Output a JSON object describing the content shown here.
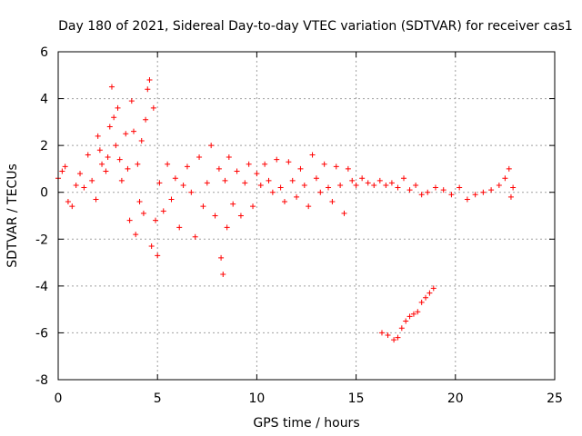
{
  "chart_data": {
    "type": "scatter",
    "title": "Day 180 of 2021, Sidereal Day-to-day VTEC variation (SDTVAR) for receiver cas1",
    "xlabel": "GPS time / hours",
    "ylabel": "SDTVAR / TECUs",
    "xlim": [
      0,
      25
    ],
    "ylim": [
      -8,
      6
    ],
    "x_ticks": [
      0,
      5,
      10,
      15,
      20,
      25
    ],
    "x_tick_labels": [
      "0",
      "5",
      "10",
      "15",
      "20",
      "25"
    ],
    "y_ticks": [
      -8,
      -6,
      -4,
      -2,
      0,
      2,
      4,
      6
    ],
    "y_tick_labels": [
      "-8",
      "-6",
      "-4",
      "-2",
      "0",
      "2",
      "4",
      "6"
    ],
    "grid": true,
    "marker": "+",
    "series": [
      {
        "name": "cas1 SDTVAR",
        "color": "#ff0000",
        "points": [
          [
            0.0,
            0.6
          ],
          [
            0.2,
            0.9
          ],
          [
            0.35,
            1.1
          ],
          [
            0.5,
            -0.4
          ],
          [
            0.7,
            -0.6
          ],
          [
            0.9,
            0.3
          ],
          [
            1.1,
            0.8
          ],
          [
            1.3,
            0.2
          ],
          [
            1.5,
            1.6
          ],
          [
            1.7,
            0.5
          ],
          [
            1.9,
            -0.3
          ],
          [
            2.0,
            2.4
          ],
          [
            2.1,
            1.8
          ],
          [
            2.2,
            1.2
          ],
          [
            2.4,
            0.9
          ],
          [
            2.5,
            1.5
          ],
          [
            2.6,
            2.8
          ],
          [
            2.7,
            4.5
          ],
          [
            2.8,
            3.2
          ],
          [
            2.9,
            2.0
          ],
          [
            3.0,
            3.6
          ],
          [
            3.1,
            1.4
          ],
          [
            3.2,
            0.5
          ],
          [
            3.4,
            2.5
          ],
          [
            3.5,
            1.0
          ],
          [
            3.6,
            -1.2
          ],
          [
            3.7,
            3.9
          ],
          [
            3.8,
            2.6
          ],
          [
            3.9,
            -1.8
          ],
          [
            4.0,
            1.2
          ],
          [
            4.1,
            -0.4
          ],
          [
            4.2,
            2.2
          ],
          [
            4.3,
            -0.9
          ],
          [
            4.4,
            3.1
          ],
          [
            4.5,
            4.4
          ],
          [
            4.6,
            4.8
          ],
          [
            4.7,
            -2.3
          ],
          [
            4.8,
            3.6
          ],
          [
            4.9,
            -1.2
          ],
          [
            5.0,
            -2.7
          ],
          [
            5.1,
            0.4
          ],
          [
            5.3,
            -0.8
          ],
          [
            5.5,
            1.2
          ],
          [
            5.7,
            -0.3
          ],
          [
            5.9,
            0.6
          ],
          [
            6.1,
            -1.5
          ],
          [
            6.3,
            0.3
          ],
          [
            6.5,
            1.1
          ],
          [
            6.7,
            0.0
          ],
          [
            6.9,
            -1.9
          ],
          [
            7.1,
            1.5
          ],
          [
            7.3,
            -0.6
          ],
          [
            7.5,
            0.4
          ],
          [
            7.7,
            2.0
          ],
          [
            7.9,
            -1.0
          ],
          [
            8.1,
            1.0
          ],
          [
            8.2,
            -2.8
          ],
          [
            8.3,
            -3.5
          ],
          [
            8.4,
            0.5
          ],
          [
            8.5,
            -1.5
          ],
          [
            8.6,
            1.5
          ],
          [
            8.8,
            -0.5
          ],
          [
            9.0,
            0.9
          ],
          [
            9.2,
            -1.0
          ],
          [
            9.4,
            0.4
          ],
          [
            9.6,
            1.2
          ],
          [
            9.8,
            -0.6
          ],
          [
            10.0,
            0.8
          ],
          [
            10.2,
            0.3
          ],
          [
            10.4,
            1.2
          ],
          [
            10.6,
            0.5
          ],
          [
            10.8,
            0.0
          ],
          [
            11.0,
            1.4
          ],
          [
            11.2,
            0.2
          ],
          [
            11.4,
            -0.4
          ],
          [
            11.6,
            1.3
          ],
          [
            11.8,
            0.5
          ],
          [
            12.0,
            -0.2
          ],
          [
            12.2,
            1.0
          ],
          [
            12.4,
            0.3
          ],
          [
            12.6,
            -0.6
          ],
          [
            12.8,
            1.6
          ],
          [
            13.0,
            0.6
          ],
          [
            13.2,
            0.0
          ],
          [
            13.4,
            1.2
          ],
          [
            13.6,
            0.2
          ],
          [
            13.8,
            -0.4
          ],
          [
            14.0,
            1.1
          ],
          [
            14.2,
            0.3
          ],
          [
            14.4,
            -0.9
          ],
          [
            14.6,
            1.0
          ],
          [
            14.8,
            0.5
          ],
          [
            15.0,
            0.3
          ],
          [
            15.3,
            0.6
          ],
          [
            15.6,
            0.4
          ],
          [
            15.9,
            0.3
          ],
          [
            16.2,
            0.5
          ],
          [
            16.5,
            0.3
          ],
          [
            16.8,
            0.4
          ],
          [
            17.1,
            0.2
          ],
          [
            17.4,
            0.6
          ],
          [
            17.7,
            0.1
          ],
          [
            18.0,
            0.3
          ],
          [
            18.3,
            -0.1
          ],
          [
            18.6,
            0.0
          ],
          [
            19.0,
            0.2
          ],
          [
            19.4,
            0.1
          ],
          [
            19.8,
            -0.1
          ],
          [
            20.2,
            0.2
          ],
          [
            20.6,
            -0.3
          ],
          [
            21.0,
            -0.1
          ],
          [
            21.4,
            0.0
          ],
          [
            21.8,
            0.1
          ],
          [
            22.2,
            0.3
          ],
          [
            22.5,
            0.6
          ],
          [
            22.7,
            1.0
          ],
          [
            22.8,
            -0.2
          ],
          [
            22.9,
            0.2
          ],
          [
            16.3,
            -6.0
          ],
          [
            16.6,
            -6.1
          ],
          [
            16.9,
            -6.3
          ],
          [
            17.1,
            -6.2
          ],
          [
            17.3,
            -5.8
          ],
          [
            17.5,
            -5.5
          ],
          [
            17.7,
            -5.3
          ],
          [
            17.9,
            -5.2
          ],
          [
            18.1,
            -5.1
          ],
          [
            18.3,
            -4.7
          ],
          [
            18.5,
            -4.5
          ],
          [
            18.7,
            -4.3
          ],
          [
            18.9,
            -4.1
          ]
        ]
      }
    ]
  }
}
